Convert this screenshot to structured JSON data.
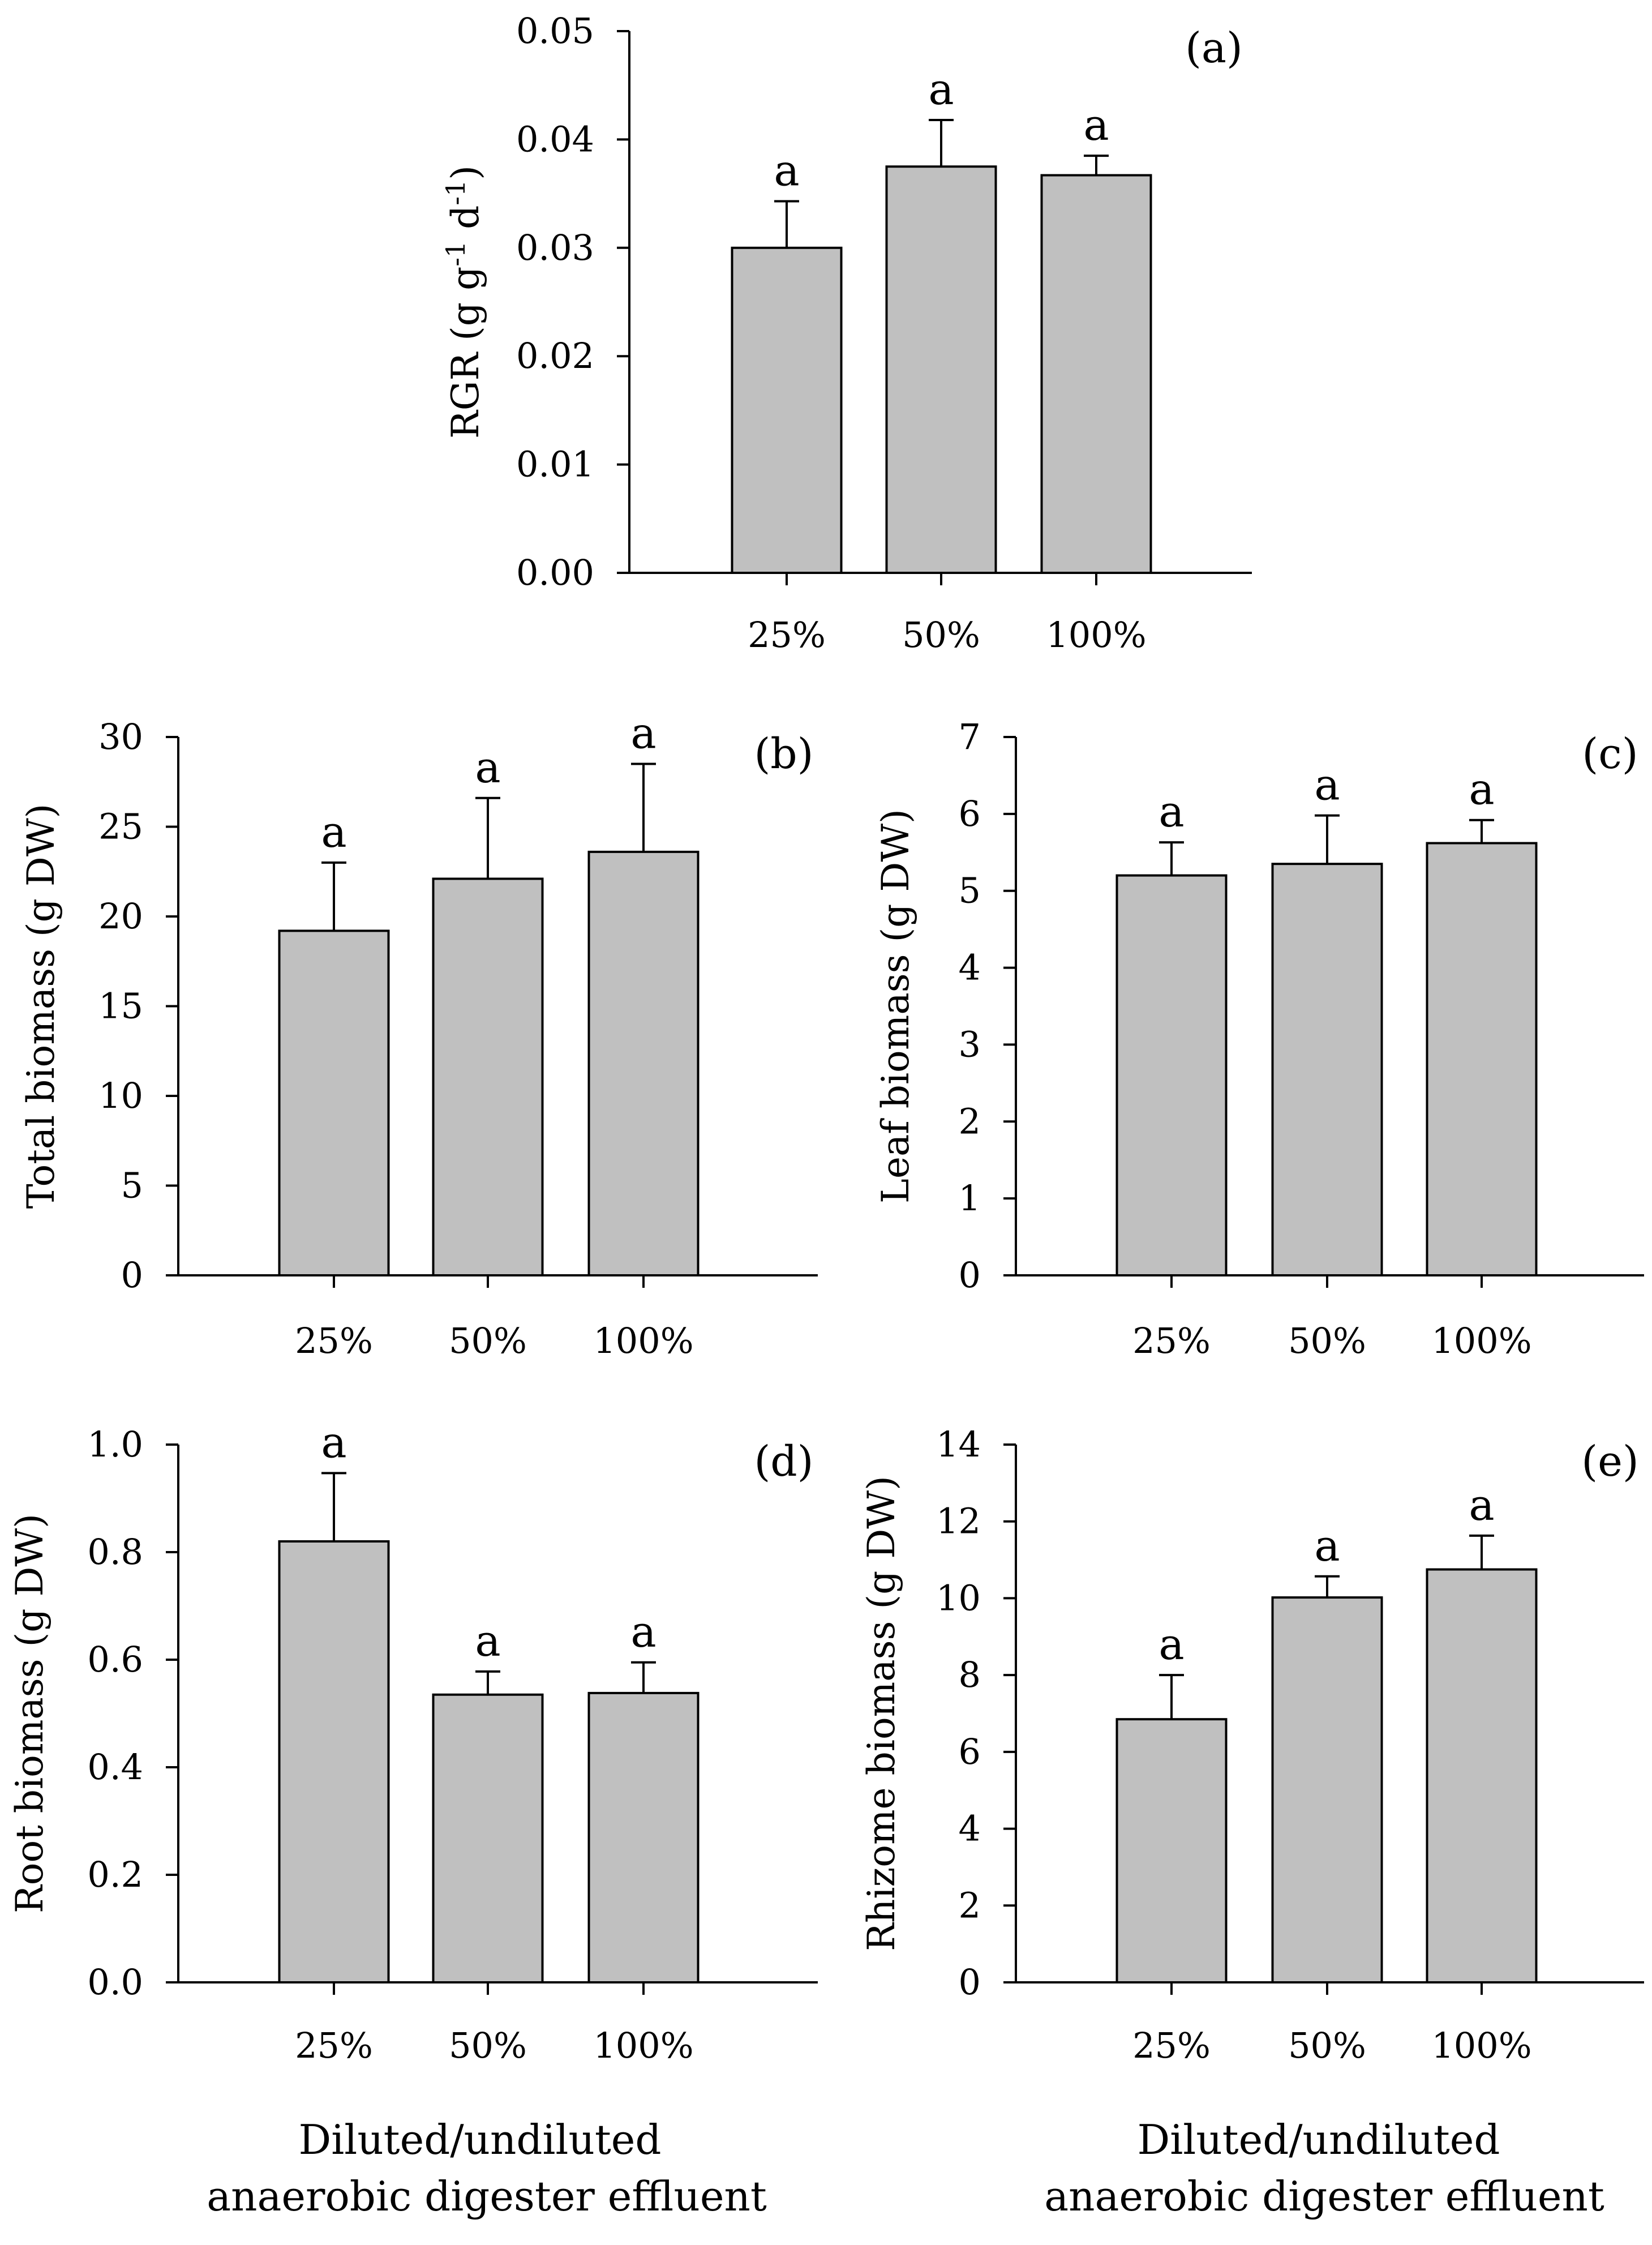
{
  "figure": {
    "xlabel_lines": [
      "Diluted/undiluted",
      "anaerobic digester effluent"
    ]
  },
  "chart_data": [
    {
      "type": "bar",
      "panel": "(a)",
      "categories": [
        "25%",
        "50%",
        "100%"
      ],
      "values": [
        0.03,
        0.0375,
        0.0367
      ],
      "errors": [
        0.0043,
        0.0043,
        0.0018
      ],
      "significance": [
        "a",
        "a",
        "a"
      ],
      "ylabel": "RGR (g g",
      "ylabel_sup1": "-1",
      "ylabel_mid": " d",
      "ylabel_sup2": "-1",
      "ylabel_end": ")",
      "ylim": [
        0,
        0.05
      ],
      "yticks": [
        "0.00",
        "0.01",
        "0.02",
        "0.03",
        "0.04",
        "0.05"
      ],
      "legend": "none",
      "grid": false
    },
    {
      "type": "bar",
      "panel": "(b)",
      "categories": [
        "25%",
        "50%",
        "100%"
      ],
      "values": [
        19.2,
        22.1,
        23.6
      ],
      "errors": [
        3.8,
        4.5,
        4.9
      ],
      "significance": [
        "a",
        "a",
        "a"
      ],
      "ylabel": "Total biomass (g DW)",
      "ylim": [
        0,
        30
      ],
      "yticks": [
        "0",
        "5",
        "10",
        "15",
        "20",
        "25",
        "30"
      ],
      "legend": "none",
      "grid": false
    },
    {
      "type": "bar",
      "panel": "(c)",
      "categories": [
        "25%",
        "50%",
        "100%"
      ],
      "values": [
        5.2,
        5.35,
        5.62
      ],
      "errors": [
        0.43,
        0.63,
        0.3
      ],
      "significance": [
        "a",
        "a",
        "a"
      ],
      "ylabel": "Leaf biomass (g DW)",
      "ylim": [
        0,
        7
      ],
      "yticks": [
        "0",
        "1",
        "2",
        "3",
        "4",
        "5",
        "6",
        "7"
      ],
      "legend": "none",
      "grid": false
    },
    {
      "type": "bar",
      "panel": "(d)",
      "categories": [
        "25%",
        "50%",
        "100%"
      ],
      "values": [
        0.82,
        0.535,
        0.538
      ],
      "errors": [
        0.127,
        0.043,
        0.057
      ],
      "significance": [
        "a",
        "a",
        "a"
      ],
      "ylabel": "Root biomass (g DW)",
      "ylim": [
        0,
        1.0
      ],
      "yticks": [
        "0.0",
        "0.2",
        "0.4",
        "0.6",
        "0.8",
        "1.0"
      ],
      "legend": "none",
      "grid": false
    },
    {
      "type": "bar",
      "panel": "(e)",
      "categories": [
        "25%",
        "50%",
        "100%"
      ],
      "values": [
        6.85,
        10.02,
        10.75
      ],
      "errors": [
        1.15,
        0.55,
        0.88
      ],
      "significance": [
        "a",
        "a",
        "a"
      ],
      "ylabel": "Rhizome biomass (g DW)",
      "ylim": [
        0,
        14
      ],
      "yticks": [
        "0",
        "2",
        "4",
        "6",
        "8",
        "10",
        "12",
        "14"
      ],
      "legend": "none",
      "grid": false
    }
  ]
}
